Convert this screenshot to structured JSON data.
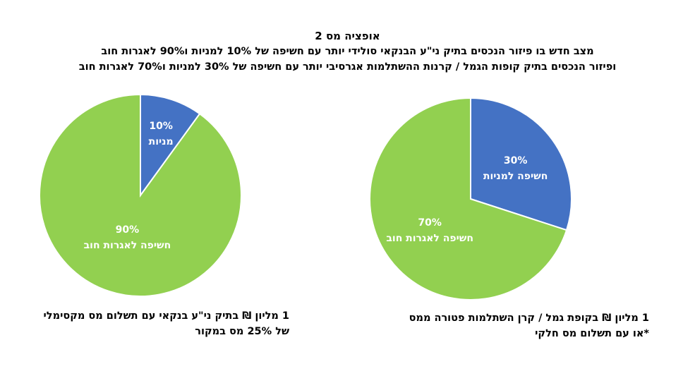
{
  "title": {
    "line1": "אופציה מס 2",
    "line2": "מצב חדש בו פיזור הנכסים בתיק ני\"ע הבנקאי סולידי יותר עם חשיפה של 10% למניות ו90% לאגרות חוב",
    "line3": "ופיזור הנכסים בתיק קופות הגמל / קרנות ההשתלמות אגרסיבי יותר עם חשיפה של 30% למניות ו70% לאגרות חוב"
  },
  "colors": {
    "blue": "#4472C4",
    "green": "#92D050"
  },
  "chart_data": [
    {
      "type": "pie",
      "slices": [
        {
          "pct_label": "10%",
          "name": "מניות",
          "value": 10,
          "color": "#4472C4"
        },
        {
          "pct_label": "90%",
          "name": "חשיפה לאגרות חוב",
          "value": 90,
          "color": "#92D050"
        }
      ],
      "caption": [
        "1 מליון ₪ בתיק ני\"ע בנקאי עם תשלום מס מקסימלי",
        "של 25% מס במקור"
      ]
    },
    {
      "type": "pie",
      "slices": [
        {
          "pct_label": "30%",
          "name": "חשיפה למניות",
          "value": 30,
          "color": "#4472C4"
        },
        {
          "pct_label": "70%",
          "name": "חשיפה לאגרות חוב",
          "value": 70,
          "color": "#92D050"
        }
      ],
      "caption": [
        "1 מליון ₪ בקופת גמל / קרן השתלמות פטורה ממס",
        "*או עם תשלום מס חלקי"
      ]
    }
  ]
}
